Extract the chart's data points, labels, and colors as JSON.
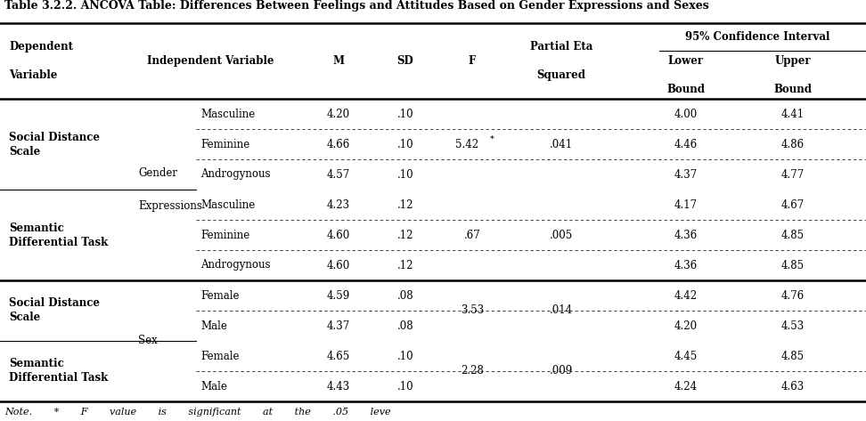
{
  "title": "Table 3.2.2. ANCOVA Table: Differences Between Feelings and Attitudes Based on Gender Expressions and Sexes",
  "rows": [
    {
      "dep": "Social Distance\nScale",
      "indep_sub": "Masculine",
      "M": "4.20",
      "SD": ".10",
      "F": "5.42",
      "F_star": true,
      "eta": ".041",
      "lower": "4.00",
      "upper": "4.41"
    },
    {
      "dep": "",
      "indep_sub": "Feminine",
      "M": "4.66",
      "SD": ".10",
      "F": "",
      "F_star": false,
      "eta": "",
      "lower": "4.46",
      "upper": "4.86"
    },
    {
      "dep": "",
      "indep_sub": "Androgynous",
      "M": "4.57",
      "SD": ".10",
      "F": "",
      "F_star": false,
      "eta": "",
      "lower": "4.37",
      "upper": "4.77"
    },
    {
      "dep": "Semantic\nDifferential Task",
      "indep_sub": "Masculine",
      "M": "4.23",
      "SD": ".12",
      "F": ".67",
      "F_star": false,
      "eta": ".005",
      "lower": "4.17",
      "upper": "4.67"
    },
    {
      "dep": "",
      "indep_sub": "Feminine",
      "M": "4.60",
      "SD": ".12",
      "F": "",
      "F_star": false,
      "eta": "",
      "lower": "4.36",
      "upper": "4.85"
    },
    {
      "dep": "",
      "indep_sub": "Androgynous",
      "M": "4.60",
      "SD": ".12",
      "F": "",
      "F_star": false,
      "eta": "",
      "lower": "4.36",
      "upper": "4.85"
    },
    {
      "dep": "Social Distance\nScale",
      "indep_sub": "Female",
      "M": "4.59",
      "SD": ".08",
      "F": "3.53",
      "F_star": false,
      "eta": ".014",
      "lower": "4.42",
      "upper": "4.76"
    },
    {
      "dep": "",
      "indep_sub": "Male",
      "M": "4.37",
      "SD": ".08",
      "F": "",
      "F_star": false,
      "eta": "",
      "lower": "4.20",
      "upper": "4.53"
    },
    {
      "dep": "Semantic\nDifferential Task",
      "indep_sub": "Female",
      "M": "4.65",
      "SD": ".10",
      "F": "2.28",
      "F_star": false,
      "eta": ".009",
      "lower": "4.45",
      "upper": "4.85"
    },
    {
      "dep": "",
      "indep_sub": "Male",
      "M": "4.43",
      "SD": ".10",
      "F": "",
      "F_star": false,
      "eta": "",
      "lower": "4.24",
      "upper": "4.63"
    }
  ],
  "note": "Note.       *       F       value       is       significant       at       the       .05       leve",
  "bg_color": "#ffffff",
  "font_size": 8.5
}
